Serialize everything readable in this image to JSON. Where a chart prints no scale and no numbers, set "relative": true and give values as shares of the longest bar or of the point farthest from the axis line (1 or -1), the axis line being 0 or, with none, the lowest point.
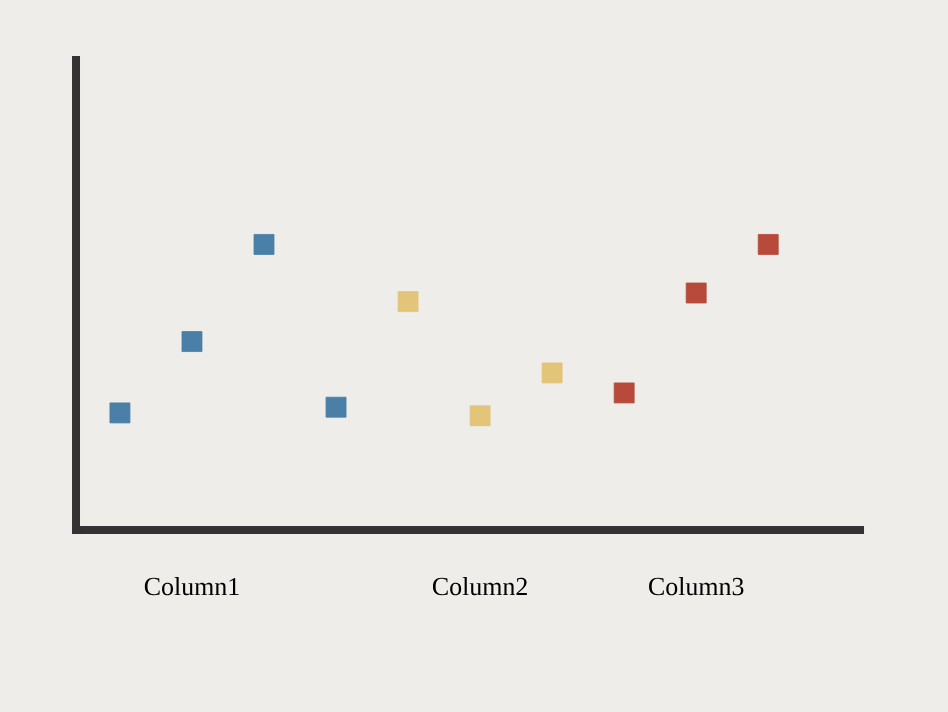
{
  "chart_data": {
    "type": "scatter",
    "relative": true,
    "marker": "square",
    "categories": [
      null,
      "Column1",
      null,
      null,
      null,
      "Column2",
      null,
      null,
      "Column3",
      null
    ],
    "series": [
      {
        "color": "#4a7fa8",
        "values": [
          0.41,
          0.66,
          1.0,
          0.43,
          null,
          null,
          null,
          null,
          null,
          null
        ]
      },
      {
        "color": "#e3c57a",
        "values": [
          null,
          null,
          null,
          null,
          0.8,
          0.4,
          0.55,
          null,
          null,
          null
        ]
      },
      {
        "color": "#b84a3b",
        "values": [
          null,
          null,
          null,
          null,
          null,
          null,
          null,
          0.48,
          0.83,
          1.0
        ]
      }
    ]
  }
}
